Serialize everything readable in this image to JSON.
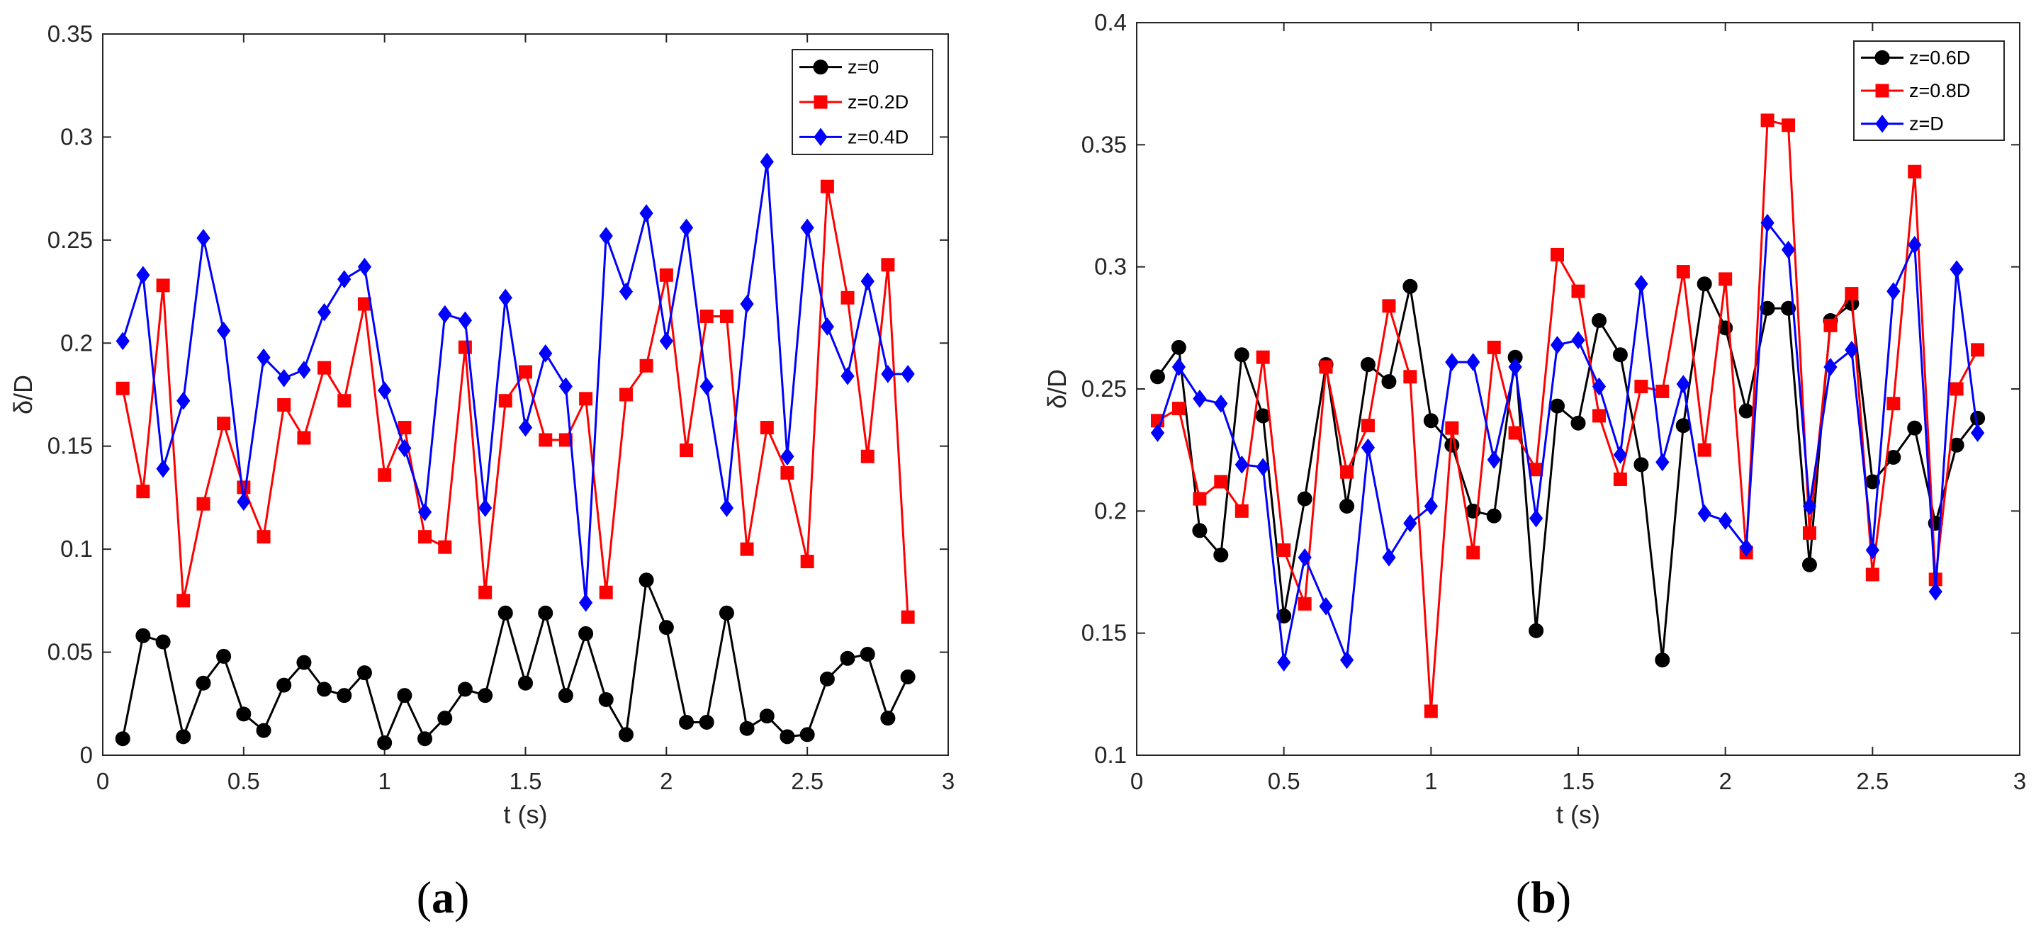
{
  "chart_data": [
    {
      "type": "line",
      "panel": "a",
      "xlabel": "t (s)",
      "ylabel": "δ/D",
      "xlim": [
        0,
        3
      ],
      "ylim": [
        0,
        0.35
      ],
      "xticks": [
        0,
        0.5,
        1,
        1.5,
        2,
        2.5,
        3
      ],
      "xtick_labels": [
        "0",
        "0.5",
        "1",
        "1.5",
        "2",
        "2.5",
        "3"
      ],
      "yticks": [
        0,
        0.05,
        0.1,
        0.15,
        0.2,
        0.25,
        0.3,
        0.35
      ],
      "ytick_labels": [
        "0",
        "0.05",
        "0.1",
        "0.15",
        "0.2",
        "0.25",
        "0.3",
        "0.35"
      ],
      "legend_position": "top-right",
      "x": [
        0.071,
        0.143,
        0.214,
        0.286,
        0.357,
        0.429,
        0.5,
        0.571,
        0.643,
        0.714,
        0.786,
        0.857,
        0.929,
        1.0,
        1.071,
        1.143,
        1.214,
        1.286,
        1.357,
        1.429,
        1.5,
        1.571,
        1.643,
        1.714,
        1.786,
        1.857,
        1.929,
        2.0,
        2.071,
        2.143,
        2.214,
        2.286,
        2.357,
        2.429,
        2.5,
        2.571,
        2.643,
        2.714,
        2.786,
        2.857
      ],
      "series": [
        {
          "name": "z=0",
          "color": "#000000",
          "marker": "circle",
          "values": [
            0.008,
            0.058,
            0.055,
            0.009,
            0.035,
            0.048,
            0.02,
            0.012,
            0.034,
            0.045,
            0.032,
            0.029,
            0.04,
            0.006,
            0.029,
            0.008,
            0.018,
            0.032,
            0.029,
            0.069,
            0.035,
            0.069,
            0.029,
            0.059,
            0.027,
            0.01,
            0.085,
            0.062,
            0.016,
            0.016,
            0.069,
            0.013,
            0.019,
            0.009,
            0.01,
            0.037,
            0.047,
            0.049,
            0.018,
            0.038
          ]
        },
        {
          "name": "z=0.2D",
          "color": "#ff0000",
          "marker": "square",
          "values": [
            0.178,
            0.128,
            0.228,
            0.075,
            0.122,
            0.161,
            0.13,
            0.106,
            0.17,
            0.154,
            0.188,
            0.172,
            0.219,
            0.136,
            0.159,
            0.106,
            0.101,
            0.198,
            0.079,
            0.172,
            0.186,
            0.153,
            0.153,
            0.173,
            0.079,
            0.175,
            0.189,
            0.233,
            0.148,
            0.213,
            0.213,
            0.1,
            0.159,
            0.137,
            0.094,
            0.276,
            0.222,
            0.145,
            0.238,
            0.067
          ]
        },
        {
          "name": "z=0.4D",
          "color": "#0000ff",
          "marker": "diamond",
          "values": [
            0.201,
            0.233,
            0.139,
            0.172,
            0.251,
            0.206,
            0.123,
            0.193,
            0.183,
            0.187,
            0.215,
            0.231,
            0.237,
            0.177,
            0.149,
            0.118,
            0.214,
            0.211,
            0.12,
            0.222,
            0.159,
            0.195,
            0.179,
            0.074,
            0.252,
            0.225,
            0.263,
            0.201,
            0.256,
            0.179,
            0.12,
            0.219,
            0.288,
            0.145,
            0.256,
            0.208,
            0.184,
            0.23,
            0.185,
            0.185
          ]
        }
      ]
    },
    {
      "type": "line",
      "panel": "b",
      "xlabel": "t (s)",
      "ylabel": "δ/D",
      "xlim": [
        0,
        3
      ],
      "ylim": [
        0.1,
        0.4
      ],
      "xticks": [
        0,
        0.5,
        1,
        1.5,
        2,
        2.5,
        3
      ],
      "xtick_labels": [
        "0",
        "0.5",
        "1",
        "1.5",
        "2",
        "2.5",
        "3"
      ],
      "yticks": [
        0.1,
        0.15,
        0.2,
        0.25,
        0.3,
        0.35,
        0.4
      ],
      "ytick_labels": [
        "0.1",
        "0.15",
        "0.2",
        "0.25",
        "0.3",
        "0.35",
        "0.4"
      ],
      "legend_position": "top-right",
      "x": [
        0.071,
        0.143,
        0.214,
        0.286,
        0.357,
        0.429,
        0.5,
        0.571,
        0.643,
        0.714,
        0.786,
        0.857,
        0.929,
        1.0,
        1.071,
        1.143,
        1.214,
        1.286,
        1.357,
        1.429,
        1.5,
        1.571,
        1.643,
        1.714,
        1.786,
        1.857,
        1.929,
        2.0,
        2.071,
        2.143,
        2.214,
        2.286,
        2.357,
        2.429,
        2.5,
        2.571,
        2.643,
        2.714,
        2.786,
        2.857
      ],
      "series": [
        {
          "name": "z=0.6D",
          "color": "#000000",
          "marker": "circle",
          "values": [
            0.255,
            0.267,
            0.192,
            0.182,
            0.264,
            0.239,
            0.157,
            0.205,
            0.26,
            0.202,
            0.26,
            0.253,
            0.292,
            0.237,
            0.227,
            0.2,
            0.198,
            0.263,
            0.151,
            0.243,
            0.236,
            0.278,
            0.264,
            0.219,
            0.139,
            0.235,
            0.293,
            0.275,
            0.241,
            0.283,
            0.283,
            0.178,
            0.278,
            0.285,
            0.212,
            0.222,
            0.234,
            0.195,
            0.227,
            0.238
          ]
        },
        {
          "name": "z=0.8D",
          "color": "#ff0000",
          "marker": "square",
          "values": [
            0.237,
            0.242,
            0.205,
            0.212,
            0.2,
            0.263,
            0.184,
            0.162,
            0.259,
            0.216,
            0.235,
            0.284,
            0.255,
            0.118,
            0.234,
            0.183,
            0.267,
            0.232,
            0.217,
            0.305,
            0.29,
            0.239,
            0.213,
            0.251,
            0.249,
            0.298,
            0.225,
            0.295,
            0.183,
            0.36,
            0.358,
            0.191,
            0.276,
            0.289,
            0.174,
            0.244,
            0.339,
            0.172,
            0.25,
            0.266
          ]
        },
        {
          "name": "z=D",
          "color": "#0000ff",
          "marker": "diamond",
          "values": [
            0.232,
            0.259,
            0.246,
            0.244,
            0.219,
            0.218,
            0.138,
            0.181,
            0.161,
            0.139,
            0.226,
            0.181,
            0.195,
            0.202,
            0.261,
            0.261,
            0.221,
            0.259,
            0.197,
            0.268,
            0.27,
            0.251,
            0.223,
            0.293,
            0.22,
            0.252,
            0.199,
            0.196,
            0.185,
            0.318,
            0.307,
            0.202,
            0.259,
            0.266,
            0.184,
            0.29,
            0.309,
            0.167,
            0.299,
            0.232
          ]
        }
      ]
    }
  ],
  "panel_labels": {
    "a": {
      "open": "(",
      "letter": "a",
      "close": ")"
    },
    "b": {
      "open": "(",
      "letter": "b",
      "close": ")"
    }
  }
}
